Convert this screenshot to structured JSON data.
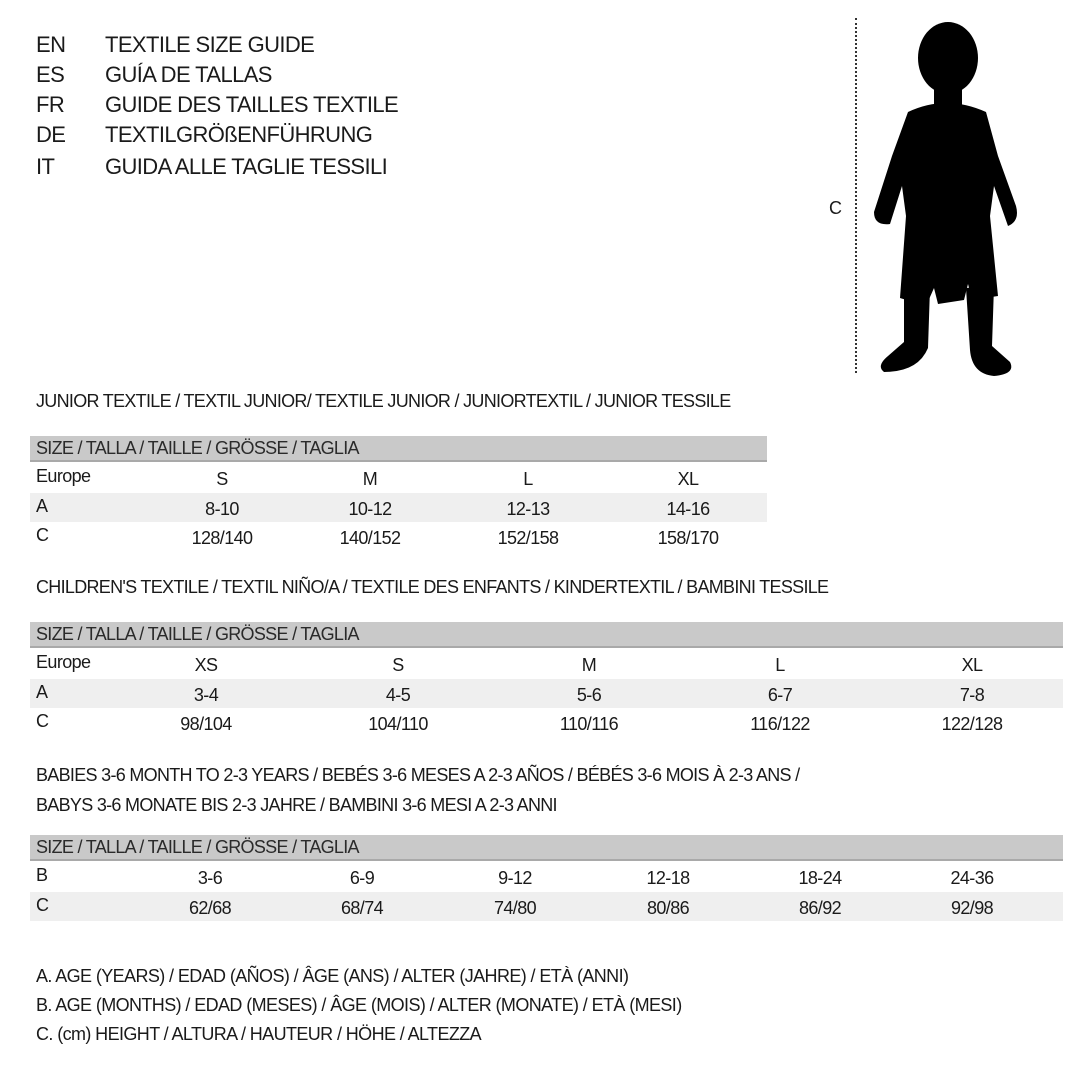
{
  "languages": [
    {
      "code": "EN",
      "text": "TEXTILE SIZE GUIDE"
    },
    {
      "code": "ES",
      "text": "GUÍA DE TALLAS"
    },
    {
      "code": "FR",
      "text": "GUIDE DES TAILLES TEXTILE"
    },
    {
      "code": "DE",
      "text": "TEXTILGRÖßENFÜHRUNG"
    },
    {
      "code": "IT",
      "text": "GUIDA ALLE TAGLIE TESSILI"
    }
  ],
  "figure": {
    "measure_label": "C"
  },
  "sections": [
    {
      "title_lines": [
        "JUNIOR TEXTILE / TEXTIL JUNIOR/ TEXTILE JUNIOR / JUNIORTEXTIL / JUNIOR TESSILE"
      ],
      "header": "SIZE / TALLA / TAILLE / GRÖSSE / TAGLIA",
      "rows": [
        {
          "label": "Europe",
          "cells": [
            "S",
            "M",
            "L",
            "XL"
          ]
        },
        {
          "label": "A",
          "cells": [
            "8-10",
            "10-12",
            "12-13",
            "14-16"
          ]
        },
        {
          "label": "C",
          "cells": [
            "128/140",
            "140/152",
            "152/158",
            "158/170"
          ]
        }
      ]
    },
    {
      "title_lines": [
        "CHILDREN'S TEXTILE / TEXTIL NIÑO/A / TEXTILE DES ENFANTS / KINDERTEXTIL / BAMBINI TESSILE"
      ],
      "header": "SIZE / TALLA / TAILLE / GRÖSSE / TAGLIA",
      "rows": [
        {
          "label": "Europe",
          "cells": [
            "XS",
            "S",
            "M",
            "L",
            "XL"
          ]
        },
        {
          "label": "A",
          "cells": [
            "3-4",
            "4-5",
            "5-6",
            "6-7",
            "7-8"
          ]
        },
        {
          "label": "C",
          "cells": [
            "98/104",
            "104/110",
            "110/116",
            "116/122",
            "122/128"
          ]
        }
      ]
    },
    {
      "title_lines": [
        "BABIES 3-6 MONTH TO 2-3 YEARS / BEBÉS 3-6 MESES A 2-3 AÑOS / BÉBÉS 3-6 MOIS À 2-3 ANS /",
        "BABYS 3-6 MONATE BIS 2-3 JAHRE / BAMBINI 3-6 MESI A 2-3 ANNI"
      ],
      "header": "SIZE / TALLA / TAILLE / GRÖSSE / TAGLIA",
      "rows": [
        {
          "label": "B",
          "cells": [
            "3-6",
            "6-9",
            "9-12",
            "12-18",
            "18-24",
            "24-36"
          ]
        },
        {
          "label": "C",
          "cells": [
            "62/68",
            "68/74",
            "74/80",
            "80/86",
            "86/92",
            "92/98"
          ]
        }
      ]
    }
  ],
  "legend": [
    "A. AGE (YEARS) / EDAD (AÑOS) / ÂGE (ANS) / ALTER (JAHRE) / ETÀ (ANNI)",
    "B. AGE (MONTHS) / EDAD (MESES) / ÂGE (MOIS) / ALTER (MONATE) / ETÀ (MESI)",
    "C. (cm) HEIGHT / ALTURA / HAUTEUR / HÖHE / ALTEZZA"
  ]
}
